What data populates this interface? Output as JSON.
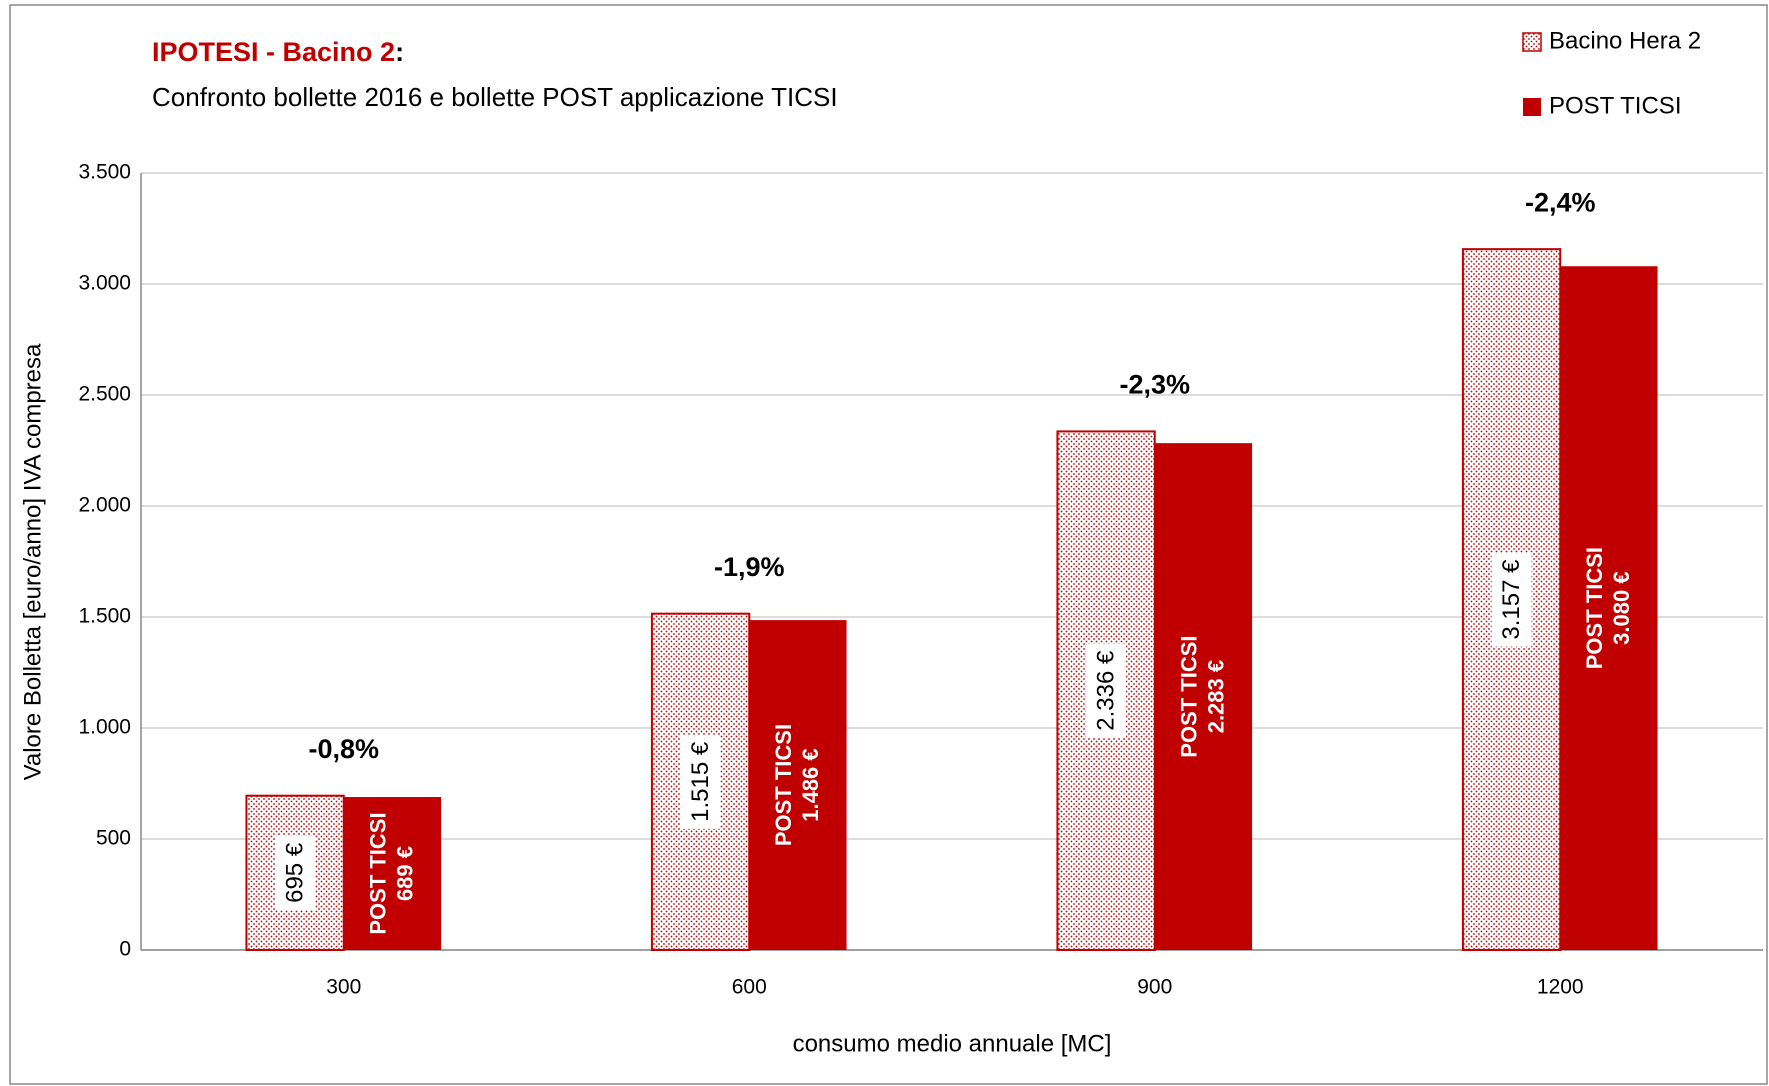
{
  "chart_data": {
    "type": "bar",
    "title_parts": [
      "IPOTESI - Bacino 2",
      ":"
    ],
    "subtitle": "Confronto bollette 2016 e bollette POST applicazione TICSI",
    "x_label": "consumo medio annuale [MC]",
    "y_label": "Valore Bolletta [euro/anno] IVA compresa",
    "categories": [
      "300",
      "600",
      "900",
      "1200"
    ],
    "series": [
      {
        "name": "Bacino Hera 2",
        "color": "#c00000",
        "pattern": "dotted",
        "values": [
          695,
          1515,
          2336,
          3157
        ],
        "value_labels": [
          "695 €",
          "1.515 €",
          "2.336 €",
          "3.157 €"
        ]
      },
      {
        "name": "POST TICSI",
        "color": "#c00000",
        "values": [
          689,
          1486,
          2283,
          3080
        ],
        "value_labels": [
          "689 €",
          "1.486 €",
          "2.283 €",
          "3.080 €"
        ]
      }
    ],
    "annotations": [
      "-0,8%",
      "-1,9%",
      "-2,3%",
      "-2,4%"
    ],
    "ylim": [
      0,
      3500
    ],
    "yticks": [
      0,
      500,
      {
        "value": 1000,
        "label": "1.000"
      },
      {
        "value": 1500,
        "label": "1.500"
      },
      {
        "value": 2000,
        "label": "2.000"
      },
      {
        "value": 2500,
        "label": "2.500"
      },
      {
        "value": 3000,
        "label": "3.000"
      },
      {
        "value": 3500,
        "label": "3.500"
      }
    ],
    "grid": true,
    "legend": "top-right"
  }
}
